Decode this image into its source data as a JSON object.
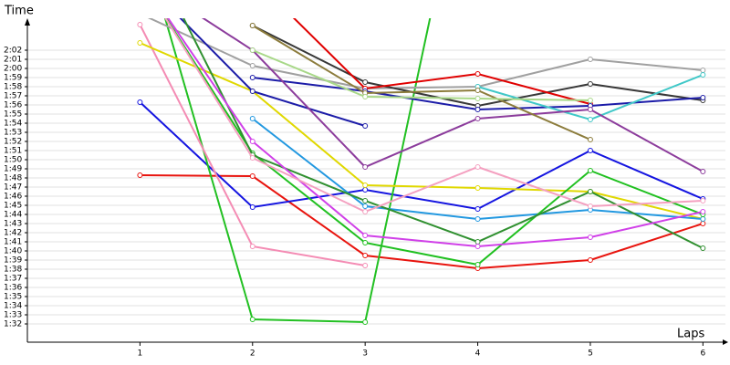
{
  "chart_data": {
    "type": "line",
    "ylabel": "Time",
    "xlabel": "Laps",
    "x": [
      1,
      2,
      3,
      4,
      5,
      6
    ],
    "xlim": [
      0,
      6.2
    ],
    "xticks": [
      1,
      2,
      3,
      4,
      5,
      6
    ],
    "ylim": [
      90,
      125
    ],
    "yticks": [
      {
        "value": 92,
        "label": "1:32"
      },
      {
        "value": 93,
        "label": "1:33"
      },
      {
        "value": 94,
        "label": "1:34"
      },
      {
        "value": 95,
        "label": "1:35"
      },
      {
        "value": 96,
        "label": "1:36"
      },
      {
        "value": 97,
        "label": "1:37"
      },
      {
        "value": 98,
        "label": "1:38"
      },
      {
        "value": 99,
        "label": "1:39"
      },
      {
        "value": 100,
        "label": "1:40"
      },
      {
        "value": 101,
        "label": "1:41"
      },
      {
        "value": 102,
        "label": "1:42"
      },
      {
        "value": 103,
        "label": "1:43"
      },
      {
        "value": 104,
        "label": "1:44"
      },
      {
        "value": 105,
        "label": "1:45"
      },
      {
        "value": 106,
        "label": "1:46"
      },
      {
        "value": 107,
        "label": "1:47"
      },
      {
        "value": 108,
        "label": "1:48"
      },
      {
        "value": 109,
        "label": "1:49"
      },
      {
        "value": 110,
        "label": "1:50"
      },
      {
        "value": 111,
        "label": "1:51"
      },
      {
        "value": 112,
        "label": "1:52"
      },
      {
        "value": 113,
        "label": "1:53"
      },
      {
        "value": 114,
        "label": "1:54"
      },
      {
        "value": 115,
        "label": "1:55"
      },
      {
        "value": 116,
        "label": "1:56"
      },
      {
        "value": 117,
        "label": "1:57"
      },
      {
        "value": 118,
        "label": "1:58"
      },
      {
        "value": 119,
        "label": "1:59"
      },
      {
        "value": 120,
        "label": "2:00"
      },
      {
        "value": 121,
        "label": "2:01"
      },
      {
        "value": 122,
        "label": "2:02"
      }
    ],
    "grid": true,
    "series": [
      {
        "color": "#e8140e",
        "values": [
          108.3,
          108.2,
          99.5,
          98.1,
          99.0,
          103.0
        ]
      },
      {
        "color": "#1414e0",
        "values": [
          116.3,
          104.8,
          106.7,
          104.6,
          111.0,
          105.7
        ]
      },
      {
        "color": "#22c022",
        "values": [
          135,
          92.5,
          92.2,
          150,
          null,
          null
        ]
      },
      {
        "color": "#f48cb4",
        "values": [
          124.8,
          100.5,
          98.4,
          null,
          null,
          null
        ]
      },
      {
        "color": "#e0d800",
        "values": [
          122.8,
          117.5,
          107.2,
          106.9,
          106.5,
          103.5
        ]
      },
      {
        "color": "#a0a0a0",
        "values": [
          126,
          120.3,
          117.8,
          118.0,
          121.0,
          119.8
        ]
      },
      {
        "color": "#383838",
        "values": [
          null,
          124.7,
          118.5,
          115.9,
          118.3,
          116.5
        ]
      },
      {
        "color": "#e00000",
        "values": [
          null,
          130,
          117.8,
          119.4,
          116.1,
          null
        ]
      },
      {
        "color": "#1c1ca8",
        "values": [
          null,
          119.0,
          117.5,
          115.5,
          115.9,
          116.8
        ]
      },
      {
        "color": "#1c1ca8",
        "values": [
          130,
          117.5,
          113.7,
          null,
          null,
          null
        ]
      },
      {
        "color": "#2298e0",
        "values": [
          null,
          114.5,
          104.9,
          103.5,
          104.5,
          103.5
        ]
      },
      {
        "color": "#40c8c8",
        "values": [
          null,
          null,
          null,
          118.0,
          114.4,
          119.3
        ]
      },
      {
        "color": "#8c3c9c",
        "values": [
          130,
          122.0,
          109.2,
          114.5,
          115.5,
          108.7
        ]
      },
      {
        "color": "#8c7c3c",
        "values": [
          null,
          124.7,
          117.3,
          117.6,
          112.2,
          null
        ]
      },
      {
        "color": "#a8d888",
        "values": [
          null,
          122.0,
          116.9,
          116.7,
          116.5,
          null
        ]
      },
      {
        "color": "#20c020",
        "values": [
          130,
          110.7,
          100.9,
          98.5,
          108.8,
          104.0
        ]
      },
      {
        "color": "#309030",
        "values": [
          135,
          110.5,
          105.5,
          101.0,
          106.5,
          100.3
        ]
      },
      {
        "color": "#d040e8",
        "values": [
          130,
          112.0,
          101.7,
          100.5,
          101.5,
          104.3
        ]
      },
      {
        "color": "#f4a0c0",
        "values": [
          130,
          110.2,
          104.3,
          109.2,
          104.9,
          105.5
        ]
      }
    ]
  }
}
